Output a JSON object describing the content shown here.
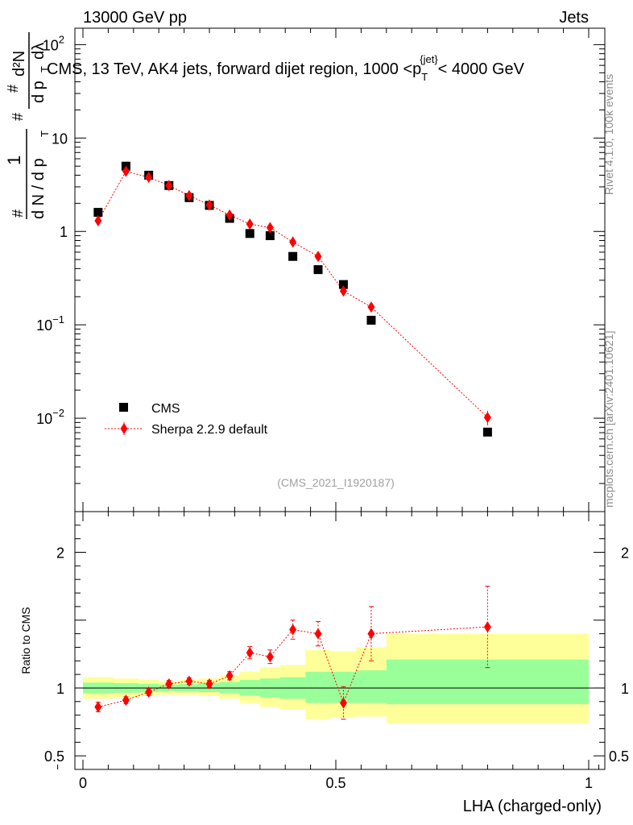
{
  "header": {
    "left": "13000 GeV pp",
    "right": "Jets"
  },
  "side_labels": {
    "rivet": "Rivet 4.1.0,  100k events",
    "mcplots": "mcplots.cern.ch [arXiv:2401.10621]"
  },
  "chart_data": [
    {
      "type": "scatter",
      "title": "CMS, 13 TeV, AK4 jets, forward dijet region, 1000 <p_T^{jet}< 4000 GeV",
      "title_parts": {
        "main": "CMS, 13 TeV, AK4 jets, forward dijet region, 1000 <p",
        "sub": "T",
        "sup": "{jet}",
        "tail": "< 4000 GeV"
      },
      "ylabel": "1/(dN/dp_T) d^2N/(dp_T dλ)",
      "ylabel_parts": {
        "hash": "#",
        "one": "1",
        "dN": "d N / d p",
        "T": "T",
        "d2N": "d²N",
        "dp": "d p",
        "dl": "dλ"
      },
      "xlim": [
        0,
        1
      ],
      "ylim": [
        0.001,
        150
      ],
      "yscale": "log",
      "y_ticks": [
        {
          "value": 100,
          "mant": "10",
          "exp": "2"
        },
        {
          "value": 10,
          "mant": "10",
          "exp": ""
        },
        {
          "value": 1,
          "mant": "1",
          "exp": ""
        },
        {
          "value": 0.1,
          "mant": "10",
          "exp": "−1"
        },
        {
          "value": 0.01,
          "mant": "10",
          "exp": "−2"
        }
      ],
      "reference": "(CMS_2021_I1920187)",
      "legend": {
        "placement": "bottom-left",
        "entries": [
          "CMS",
          "Sherpa 2.2.9 default"
        ]
      },
      "series": [
        {
          "name": "CMS",
          "color": "#000000",
          "marker": "square",
          "x": [
            0.03,
            0.085,
            0.13,
            0.17,
            0.21,
            0.25,
            0.29,
            0.33,
            0.37,
            0.415,
            0.465,
            0.515,
            0.57,
            0.8
          ],
          "y": [
            1.6,
            5.0,
            4.0,
            3.1,
            2.3,
            1.9,
            1.38,
            0.95,
            0.9,
            0.54,
            0.39,
            0.27,
            0.112,
            0.0071
          ]
        },
        {
          "name": "Sherpa 2.2.9 default",
          "color": "#ff0000",
          "marker": "diamond",
          "line": "dotted",
          "x": [
            0.03,
            0.085,
            0.13,
            0.17,
            0.21,
            0.25,
            0.29,
            0.33,
            0.37,
            0.415,
            0.465,
            0.515,
            0.57,
            0.8
          ],
          "y": [
            1.3,
            4.4,
            3.8,
            3.1,
            2.42,
            1.92,
            1.5,
            1.2,
            1.1,
            0.77,
            0.54,
            0.23,
            0.155,
            0.0102
          ],
          "yerr": [
            0.06,
            0.12,
            0.1,
            0.08,
            0.06,
            0.05,
            0.05,
            0.05,
            0.05,
            0.04,
            0.04,
            0.02,
            0.018,
            0.0018
          ]
        }
      ]
    },
    {
      "type": "scatter",
      "xlabel": "LHA (charged-only)",
      "ylabel": "Ratio to CMS",
      "xlim": [
        0,
        1
      ],
      "ylim": [
        0.4,
        2.3
      ],
      "x_ticks": [
        {
          "value": 0,
          "label": "0"
        },
        {
          "value": 0.5,
          "label": "0.5"
        },
        {
          "value": 1,
          "label": "1"
        }
      ],
      "y_ticks": [
        {
          "value": 0.5,
          "label": "0.5"
        },
        {
          "value": 1,
          "label": "1"
        },
        {
          "value": 2,
          "label": "2"
        }
      ],
      "bins": [
        0,
        0.06,
        0.11,
        0.15,
        0.19,
        0.23,
        0.27,
        0.31,
        0.35,
        0.39,
        0.44,
        0.49,
        0.54,
        0.6,
        1.0
      ],
      "band_outer": {
        "color": "#ffff99",
        "lo": [
          0.92,
          0.93,
          0.94,
          0.95,
          0.95,
          0.94,
          0.92,
          0.89,
          0.86,
          0.84,
          0.77,
          0.78,
          0.79,
          0.74
        ],
        "hi": [
          1.08,
          1.07,
          1.06,
          1.05,
          1.06,
          1.07,
          1.09,
          1.12,
          1.15,
          1.17,
          1.28,
          1.27,
          1.3,
          1.4
        ]
      },
      "band_inner": {
        "color": "#99ff99",
        "lo": [
          0.96,
          0.965,
          0.97,
          0.975,
          0.975,
          0.97,
          0.96,
          0.945,
          0.93,
          0.92,
          0.89,
          0.89,
          0.89,
          0.88
        ],
        "hi": [
          1.04,
          1.035,
          1.03,
          1.025,
          1.03,
          1.035,
          1.045,
          1.06,
          1.07,
          1.08,
          1.12,
          1.12,
          1.13,
          1.21
        ]
      },
      "series": [
        {
          "name": "Sherpa 2.2.9 default",
          "color": "#ff0000",
          "marker": "diamond",
          "line": "dotted",
          "x": [
            0.03,
            0.085,
            0.13,
            0.17,
            0.21,
            0.25,
            0.29,
            0.33,
            0.37,
            0.415,
            0.465,
            0.515,
            0.57,
            0.8
          ],
          "y": [
            0.86,
            0.91,
            0.97,
            1.03,
            1.05,
            1.03,
            1.09,
            1.26,
            1.23,
            1.43,
            1.4,
            0.89,
            1.4,
            1.45
          ],
          "yerr": [
            0.035,
            0.025,
            0.025,
            0.025,
            0.025,
            0.025,
            0.03,
            0.045,
            0.05,
            0.07,
            0.09,
            0.12,
            0.2,
            0.3
          ]
        }
      ]
    }
  ]
}
